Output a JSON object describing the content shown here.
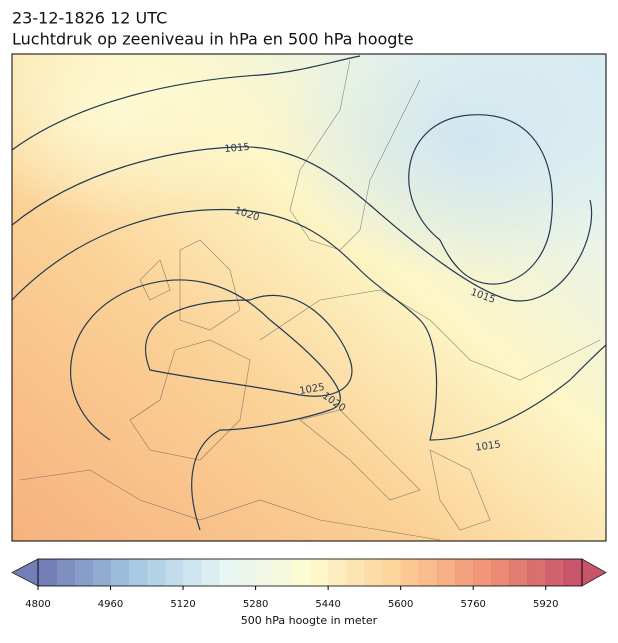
{
  "header": {
    "title": "23-12-1826 12 UTC",
    "subtitle": "Luchtdruk op zeeniveau in hPa en 500 hPa hoogte"
  },
  "map": {
    "contour_labels": [
      1015,
      1020,
      1015,
      1025,
      1020,
      1015
    ]
  },
  "colorbar": {
    "label": "500 hPa hoogte in meter",
    "range": [
      4800,
      6000
    ],
    "levels": [
      4800,
      4840,
      4880,
      4920,
      4960,
      5000,
      5040,
      5080,
      5120,
      5160,
      5200,
      5240,
      5280,
      5320,
      5360,
      5400,
      5440,
      5480,
      5520,
      5560,
      5600,
      5640,
      5680,
      5720,
      5760,
      5800,
      5840,
      5880,
      5920,
      5960,
      6000
    ],
    "ticks": [
      4800,
      4960,
      5120,
      5280,
      5440,
      5600,
      5760,
      5920
    ]
  }
}
